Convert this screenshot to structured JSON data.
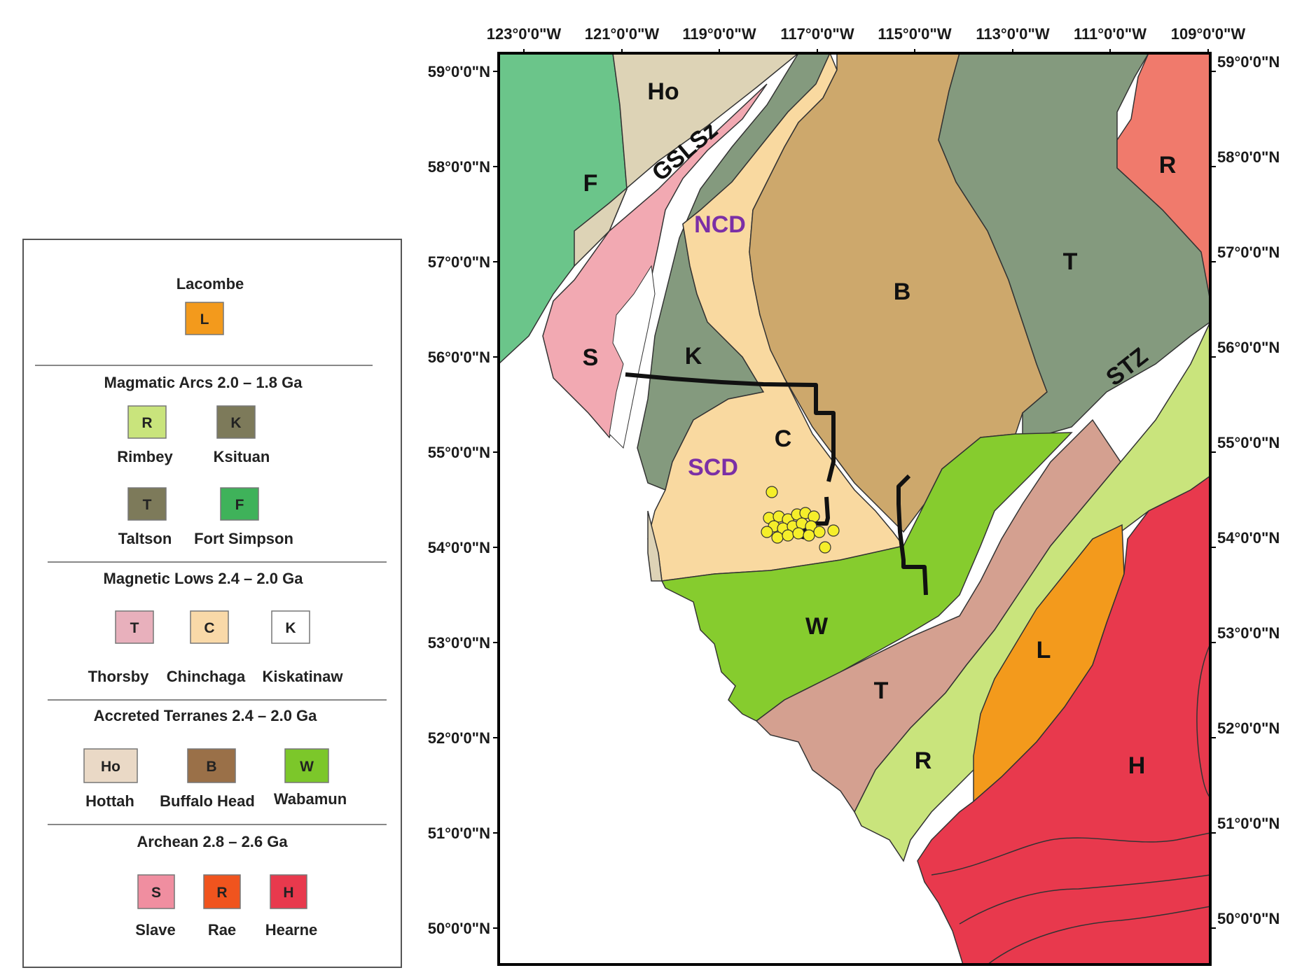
{
  "lon_ticks": [
    "123°0'0\"W",
    "121°0'0\"W",
    "119°0'0\"W",
    "117°0'0\"W",
    "115°0'0\"W",
    "113°0'0\"W",
    "111°0'0\"W",
    "109°0'0\"W"
  ],
  "lat_ticks": [
    "59°0'0\"N",
    "58°0'0\"N",
    "57°0'0\"N",
    "56°0'0\"N",
    "55°0'0\"N",
    "54°0'0\"N",
    "53°0'0\"N",
    "52°0'0\"N",
    "51°0'0\"N",
    "50°0'0\"N"
  ],
  "colors": {
    "fort_simpson": "#6bc58a",
    "hottah": "#ddd3b6",
    "thorsby_slave": "#f2a9b2",
    "ksituan_taltson": "#849a7e",
    "chinchaga": "#f9d9a0",
    "buffalo_head": "#cda86c",
    "rae": "#f07a6c",
    "rimbey": "#c9e47c",
    "wabamun": "#86cc2e",
    "thorsby_t": "#d4a090",
    "lacombe": "#f39a1c",
    "hearne": "#e8394d",
    "track": "#111111",
    "points": "#f5ee2a",
    "label_purple": "#7b2fa6"
  },
  "region_labels": {
    "ho": "Ho",
    "gslsz": "GSLSz",
    "f": "F",
    "ncd": "NCD",
    "s": "S",
    "k": "K",
    "b": "B",
    "t_north": "T",
    "r_north": "R",
    "stz": "STZ",
    "c": "C",
    "scd": "SCD",
    "w": "W",
    "t_south": "T",
    "l": "L",
    "r_south": "R",
    "h": "H"
  },
  "legend": {
    "sections": [
      {
        "title": "Lacombe",
        "items": [
          {
            "code": "L",
            "name": "",
            "color": "#f39a1c"
          }
        ]
      },
      {
        "title": "Magmatic Arcs 2.0 – 1.8 Ga",
        "items": [
          {
            "code": "R",
            "name": "Rimbey",
            "color": "#c9e47c"
          },
          {
            "code": "K",
            "name": "Ksituan",
            "color": "#7d7a5a"
          },
          {
            "code": "T",
            "name": "Taltson",
            "color": "#7d7a5a"
          },
          {
            "code": "F",
            "name": "Fort Simpson",
            "color": "#3fb25a"
          }
        ]
      },
      {
        "title": "Magnetic Lows 2.4 – 2.0 Ga",
        "items": [
          {
            "code": "T",
            "name": "Thorsby",
            "color": "#e8b0bc"
          },
          {
            "code": "C",
            "name": "Chinchaga",
            "color": "#f9d9a8"
          },
          {
            "code": "K",
            "name": "Kiskatinaw",
            "color": "#ffffff"
          }
        ]
      },
      {
        "title": "Accreted Terranes 2.4 – 2.0 Ga",
        "items": [
          {
            "code": "Ho",
            "name": "Hottah",
            "color": "#ead9c6"
          },
          {
            "code": "B",
            "name": "Buffalo Head",
            "color": "#9a7048"
          },
          {
            "code": "W",
            "name": "Wabamun",
            "color": "#7cc72a"
          }
        ]
      },
      {
        "title": "Archean 2.8 – 2.6 Ga",
        "items": [
          {
            "code": "S",
            "name": "Slave",
            "color": "#f08ea0"
          },
          {
            "code": "R",
            "name": "Rae",
            "color": "#f0541e"
          },
          {
            "code": "H",
            "name": "Hearne",
            "color": "#e8394d"
          }
        ]
      }
    ]
  }
}
